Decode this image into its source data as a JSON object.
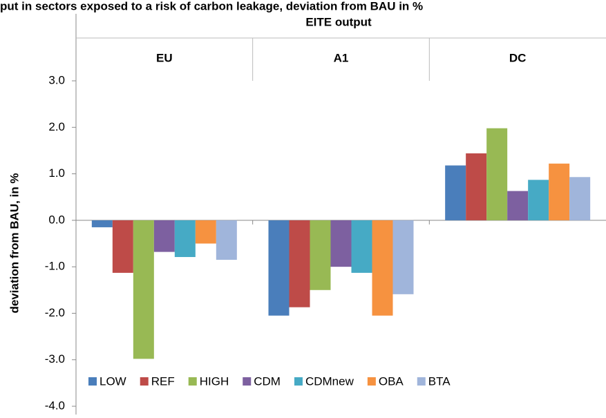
{
  "chart_data": {
    "type": "bar",
    "title": "put in sectors exposed to a risk of carbon leakage, deviation from BAU in %",
    "header": "EITE output",
    "y_label": "deviation from BAU, in %",
    "categories": [
      "EU",
      "A1",
      "DC"
    ],
    "series": [
      {
        "name": "LOW",
        "color": "#4a7ebb",
        "values": [
          -0.15,
          -2.05,
          1.18
        ]
      },
      {
        "name": "REF",
        "color": "#be4b48",
        "values": [
          -1.13,
          -1.87,
          1.44
        ]
      },
      {
        "name": "HIGH",
        "color": "#98b954",
        "values": [
          -2.98,
          -1.5,
          1.98
        ]
      },
      {
        "name": "CDM",
        "color": "#7d60a0",
        "values": [
          -0.68,
          -1.0,
          0.63
        ]
      },
      {
        "name": "CDMnew",
        "color": "#46aac5",
        "values": [
          -0.79,
          -1.13,
          0.87
        ]
      },
      {
        "name": "OBA",
        "color": "#f69240",
        "values": [
          -0.5,
          -2.05,
          1.22
        ]
      },
      {
        "name": "BTA",
        "color": "#a0b5db",
        "values": [
          -0.85,
          -1.59,
          0.93
        ]
      }
    ],
    "ylim": [
      -4,
      3
    ],
    "yticks": [
      {
        "value": -4,
        "label": "-4.0"
      },
      {
        "value": -3,
        "label": "-3.0"
      },
      {
        "value": -2,
        "label": "-2.0"
      },
      {
        "value": -1,
        "label": "-1.0"
      },
      {
        "value": 0,
        "label": "0.0"
      },
      {
        "value": 1,
        "label": "1.0"
      },
      {
        "value": 2,
        "label": "2.0"
      },
      {
        "value": 3,
        "label": "3.0"
      }
    ],
    "legend": "bottom-left"
  }
}
